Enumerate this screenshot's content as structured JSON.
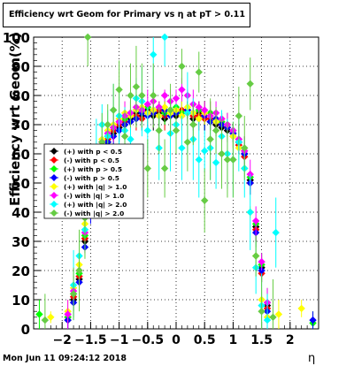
{
  "title": "Efficiency wrt Geom for Primary vs   η at pT > 0.11",
  "timestamp": "Mon Jun 11 09:24:12 2018",
  "chart_data": {
    "type": "scatter",
    "title": "Efficiency wrt Geom for Primary vs   η at pT > 0.11",
    "xlabel": "η",
    "ylabel": "Efficiency wrt Geom(%)",
    "xlim": [
      -2.5,
      2.5
    ],
    "ylim": [
      0,
      100
    ],
    "xticks": [
      -2,
      -1.5,
      -1,
      -0.5,
      0,
      0.5,
      1,
      1.5,
      2
    ],
    "xticklabels": [
      "−2",
      "−1.5",
      "−1",
      "−0.5",
      "0",
      "0.5",
      "1",
      "1.5",
      "2"
    ],
    "yticks": [
      0,
      10,
      20,
      30,
      40,
      50,
      60,
      70,
      80,
      90,
      100
    ],
    "grid": true,
    "legend_position": "left-middle",
    "series": [
      {
        "name": "(+) with p < 0.5",
        "label": "(+) with p < 0.5",
        "color": "#000000",
        "x": [
          -1.9,
          -1.8,
          -1.7,
          -1.6,
          -1.5,
          -1.4,
          -1.3,
          -1.2,
          -1.1,
          -1.0,
          -0.9,
          -0.8,
          -0.7,
          -0.6,
          -0.5,
          -0.4,
          -0.3,
          -0.2,
          -0.1,
          0.0,
          0.1,
          0.2,
          0.3,
          0.4,
          0.5,
          0.6,
          0.7,
          0.8,
          0.9,
          1.0,
          1.1,
          1.2,
          1.3,
          1.4,
          1.5,
          1.6
        ],
        "y": [
          3,
          10,
          17,
          30,
          42,
          55,
          62,
          64,
          67,
          69,
          70,
          72,
          74,
          73,
          75,
          73,
          74,
          72,
          75,
          73,
          74,
          75,
          72,
          74,
          73,
          71,
          70,
          69,
          68,
          67,
          64,
          60,
          51,
          35,
          21,
          8
        ]
      },
      {
        "name": "(−) with p < 0.5",
        "label": "(-) with p < 0.5",
        "color": "#ff0000",
        "x": [
          -1.9,
          -1.8,
          -1.7,
          -1.6,
          -1.5,
          -1.4,
          -1.3,
          -1.2,
          -1.1,
          -1.0,
          -0.9,
          -0.8,
          -0.7,
          -0.6,
          -0.5,
          -0.4,
          -0.3,
          -0.2,
          -0.1,
          0.0,
          0.1,
          0.2,
          0.3,
          0.4,
          0.5,
          0.6,
          0.7,
          0.8,
          0.9,
          1.0,
          1.1,
          1.2,
          1.3,
          1.4,
          1.5,
          1.6
        ],
        "y": [
          4,
          11,
          18,
          31,
          44,
          56,
          63,
          65,
          68,
          70,
          71,
          73,
          73,
          72,
          74,
          74,
          75,
          73,
          74,
          74,
          75,
          74,
          73,
          73,
          72,
          72,
          71,
          70,
          69,
          66,
          63,
          59,
          50,
          34,
          19,
          7
        ]
      },
      {
        "name": "(+) with p > 0.5",
        "label": "(+) with p > 0.5",
        "color": "#00ff00",
        "x": [
          -2.4,
          -1.9,
          -1.8,
          -1.7,
          -1.6,
          -1.5,
          -1.4,
          -1.3,
          -1.2,
          -1.1,
          -1.0,
          -0.9,
          -0.8,
          -0.7,
          -0.6,
          -0.5,
          -0.4,
          -0.3,
          -0.2,
          -0.1,
          0.0,
          0.1,
          0.2,
          0.3,
          0.4,
          0.5,
          0.6,
          0.7,
          0.8,
          0.9,
          1.0,
          1.1,
          1.2,
          1.3,
          1.4,
          1.5,
          1.6,
          2.4
        ],
        "y": [
          5,
          4,
          12,
          19,
          32,
          45,
          57,
          64,
          66,
          69,
          71,
          72,
          74,
          75,
          74,
          76,
          75,
          76,
          74,
          75,
          76,
          74,
          75,
          74,
          75,
          73,
          74,
          72,
          71,
          70,
          68,
          65,
          61,
          52,
          36,
          22,
          9,
          2
        ]
      },
      {
        "name": "(−) with p > 0.5",
        "label": "(-) with p > 0.5",
        "color": "#0000ff",
        "x": [
          -1.9,
          -1.8,
          -1.7,
          -1.6,
          -1.5,
          -1.4,
          -1.3,
          -1.2,
          -1.1,
          -1.0,
          -0.9,
          -0.8,
          -0.7,
          -0.6,
          -0.5,
          -0.4,
          -0.3,
          -0.2,
          -0.1,
          0.0,
          0.1,
          0.2,
          0.3,
          0.4,
          0.5,
          0.6,
          0.7,
          0.8,
          0.9,
          1.0,
          1.1,
          1.2,
          1.3,
          1.4,
          1.5,
          1.6,
          2.4
        ],
        "y": [
          3,
          9,
          16,
          28,
          41,
          54,
          61,
          64,
          66,
          68,
          70,
          71,
          72,
          74,
          73,
          74,
          73,
          75,
          73,
          74,
          73,
          75,
          74,
          72,
          73,
          71,
          72,
          70,
          69,
          67,
          64,
          60,
          50,
          33,
          20,
          6,
          3
        ]
      },
      {
        "name": "(+) with |q| > 1.0",
        "label": "(+) with |q| > 1.0",
        "color": "#ffff00",
        "x": [
          -2.2,
          -1.9,
          -1.8,
          -1.7,
          -1.6,
          -1.5,
          -1.4,
          -1.3,
          -1.2,
          -1.1,
          -1.0,
          -0.9,
          -0.8,
          -0.7,
          -0.6,
          -0.5,
          -0.4,
          -0.3,
          -0.2,
          -0.1,
          0.0,
          0.1,
          0.2,
          0.3,
          0.4,
          0.5,
          0.6,
          0.7,
          0.8,
          0.9,
          1.0,
          1.1,
          1.2,
          1.3,
          1.4,
          1.5,
          1.6,
          1.8,
          2.2
        ],
        "y": [
          4,
          6,
          14,
          22,
          36,
          48,
          58,
          65,
          68,
          70,
          72,
          74,
          73,
          75,
          76,
          74,
          75,
          73,
          76,
          74,
          75,
          73,
          76,
          74,
          72,
          74,
          73,
          71,
          72,
          70,
          66,
          62,
          55,
          40,
          25,
          10,
          4,
          5,
          7
        ]
      },
      {
        "name": "(−) with |q| > 1.0",
        "label": "(-) with |q| > 1.0",
        "color": "#ff00ff",
        "x": [
          -1.9,
          -1.8,
          -1.7,
          -1.6,
          -1.5,
          -1.4,
          -1.3,
          -1.2,
          -1.1,
          -1.0,
          -0.9,
          -0.8,
          -0.7,
          -0.6,
          -0.5,
          -0.4,
          -0.3,
          -0.2,
          -0.1,
          0.0,
          0.1,
          0.2,
          0.3,
          0.4,
          0.5,
          0.6,
          0.7,
          0.8,
          0.9,
          1.0,
          1.1,
          1.2,
          1.3,
          1.4,
          1.5,
          1.6
        ],
        "y": [
          5,
          13,
          20,
          33,
          46,
          57,
          64,
          67,
          69,
          71,
          73,
          74,
          76,
          75,
          77,
          78,
          76,
          80,
          78,
          79,
          82,
          80,
          77,
          76,
          75,
          73,
          74,
          72,
          70,
          68,
          65,
          61,
          53,
          37,
          23,
          9
        ]
      },
      {
        "name": "(+) with |q| > 2.0",
        "label": "(+) with |q| > 2.0",
        "color": "#00ffff",
        "x": [
          -1.8,
          -1.7,
          -1.6,
          -1.5,
          -1.4,
          -1.3,
          -1.2,
          -1.1,
          -1.0,
          -0.9,
          -0.8,
          -0.7,
          -0.6,
          -0.5,
          -0.4,
          -0.3,
          -0.2,
          -0.1,
          0.0,
          0.1,
          0.2,
          0.3,
          0.4,
          0.5,
          0.6,
          0.7,
          0.8,
          0.9,
          1.0,
          1.1,
          1.2,
          1.3,
          1.4,
          1.5,
          1.6,
          1.75
        ],
        "y": [
          15,
          25,
          34,
          50,
          60,
          70,
          66,
          75,
          73,
          68,
          65,
          79,
          78,
          68,
          94,
          62,
          100,
          67,
          70,
          62,
          74,
          65,
          58,
          61,
          62,
          57,
          66,
          60,
          58,
          64,
          55,
          40,
          21,
          8,
          3,
          33
        ]
      },
      {
        "name": "(−) with |q| > 2.0",
        "label": "(-) with |q| > 2.0",
        "color": "#66cc44",
        "x": [
          -2.3,
          -1.8,
          -1.7,
          -1.6,
          -1.55,
          -1.4,
          -1.3,
          -1.2,
          -1.1,
          -1.0,
          -0.9,
          -0.8,
          -0.7,
          -0.6,
          -0.5,
          -0.4,
          -0.3,
          -0.2,
          -0.1,
          0.0,
          0.1,
          0.2,
          0.3,
          0.4,
          0.5,
          0.6,
          0.7,
          0.8,
          0.9,
          1.0,
          1.1,
          1.2,
          1.3,
          1.4,
          1.5,
          1.7
        ],
        "y": [
          3,
          12,
          20,
          38,
          100,
          50,
          64,
          70,
          75,
          82,
          66,
          80,
          83,
          80,
          55,
          80,
          68,
          55,
          75,
          68,
          90,
          64,
          70,
          88,
          44,
          65,
          68,
          60,
          58,
          58,
          73,
          62,
          84,
          25,
          6,
          4
        ]
      }
    ]
  }
}
